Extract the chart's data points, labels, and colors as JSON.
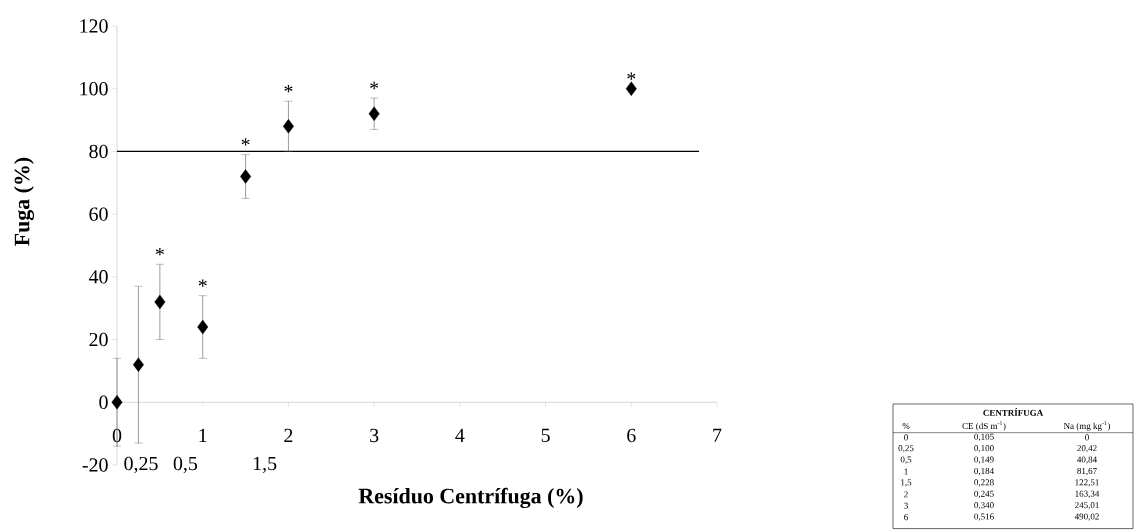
{
  "chart_data": [
    {
      "type": "scatter",
      "xlabel": "Resíduo Centrífuga (%)",
      "ylabel": "Fuga (%)",
      "x": [
        0,
        0.25,
        0.5,
        1,
        1.5,
        2,
        3,
        6
      ],
      "values": [
        0,
        12,
        32,
        24,
        72,
        88,
        92,
        100
      ],
      "errors": [
        14,
        25,
        12,
        10,
        7,
        8,
        5,
        null
      ],
      "color": "#000000",
      "marker": "diamond",
      "xlim": [
        0,
        7
      ],
      "xticks": [
        0,
        1,
        2,
        3,
        4,
        5,
        6,
        7
      ],
      "ylim": [
        -20,
        120
      ],
      "yticks": [
        -20,
        0,
        20,
        40,
        60,
        80,
        100,
        120
      ],
      "grid": false,
      "ref_lines": [
        {
          "axis": "y",
          "value": 80,
          "color": "#000000"
        }
      ],
      "annotations": [
        "0,25",
        "0,5",
        "1,5",
        {
          "text": "*",
          "x": 0.5,
          "y": 32
        },
        {
          "text": "*",
          "x": 1,
          "y": 24
        },
        {
          "text": "*",
          "x": 1.5,
          "y": 72
        },
        {
          "text": "*",
          "x": 2,
          "y": 88
        },
        {
          "text": "*",
          "x": 3,
          "y": 92
        },
        {
          "text": "*",
          "x": 6,
          "y": 100
        }
      ]
    },
    {
      "type": "other",
      "title": "CENTRÍFUGA",
      "annotations": [
        "%",
        "CE (dS m$^{-1}$)",
        "Na (mg kg$^{-1}$)",
        "0",
        "0,105",
        "0",
        "0,25",
        "0,100",
        "20,42",
        "0,5",
        "0,149",
        "40,84",
        "1",
        "0,184",
        "81,67",
        "1,5",
        "0,228",
        "122,51",
        "2",
        "0,245",
        "163,34",
        "3",
        "0,340",
        "245,01",
        "6",
        "0,516",
        "490,02"
      ]
    }
  ]
}
